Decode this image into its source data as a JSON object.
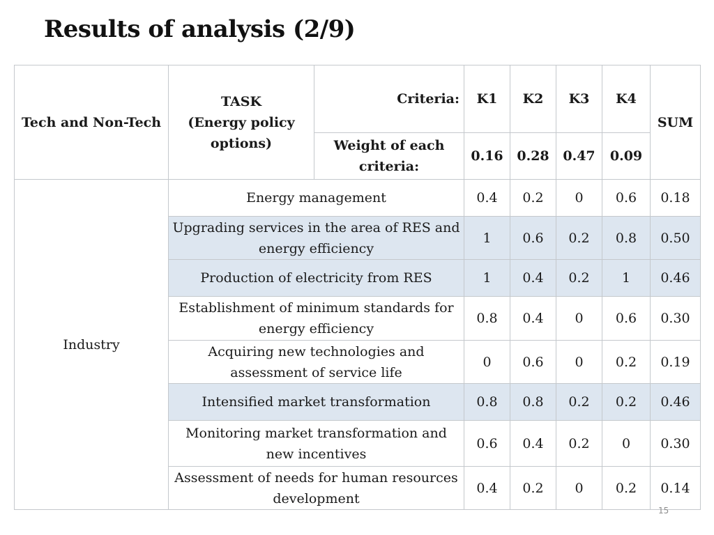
{
  "title": "Results of analysis  (2/9)",
  "header": {
    "col1": "Tech and Non-Tech",
    "task": [
      "TASK",
      "(Energy policy",
      "options)"
    ],
    "criteria_label": "Criteria:",
    "criteria": [
      "K1",
      "K2",
      "K3",
      "K4"
    ],
    "sum_label": "SUM",
    "weight_label": "Weight of each criteria:",
    "weights": [
      "0.16",
      "0.28",
      "0.47",
      "0.09"
    ]
  },
  "group_label": "Industry",
  "rows": [
    {
      "task": "Energy management",
      "k1": "0.4",
      "k2": "0.2",
      "k3": "0",
      "k4": "0.6",
      "sum": "0.18"
    },
    {
      "task": "Upgrading services in the area of RES and energy efficiency",
      "k1": "1",
      "k2": "0.6",
      "k3": "0.2",
      "k4": "0.8",
      "sum": "0.50"
    },
    {
      "task": "Production of electricity from RES",
      "k1": "1",
      "k2": "0.4",
      "k3": "0.2",
      "k4": "1",
      "sum": "0.46"
    },
    {
      "task": "Establishment of minimum standards for energy efficiency",
      "k1": "0.8",
      "k2": "0.4",
      "k3": "0",
      "k4": "0.6",
      "sum": "0.30"
    },
    {
      "task": "Acquiring new technologies and assessment of service life",
      "k1": "0",
      "k2": "0.6",
      "k3": "0",
      "k4": "0.2",
      "sum": "0.19"
    },
    {
      "task": "Intensified market transformation",
      "k1": "0.8",
      "k2": "0.8",
      "k3": "0.2",
      "k4": "0.2",
      "sum": "0.46"
    },
    {
      "task": "Monitoring market transformation and new incentives",
      "k1": "0.6",
      "k2": "0.4",
      "k3": "0.2",
      "k4": "0",
      "sum": "0.30"
    },
    {
      "task": "Assessment of needs for human resources development",
      "k1": "0.4",
      "k2": "0.2",
      "k3": "0",
      "k4": "0.2",
      "sum": "0.14"
    }
  ],
  "page_number": "15",
  "colors": {
    "shaded_row": "#dde6f0",
    "border": "#c4c8cc"
  }
}
